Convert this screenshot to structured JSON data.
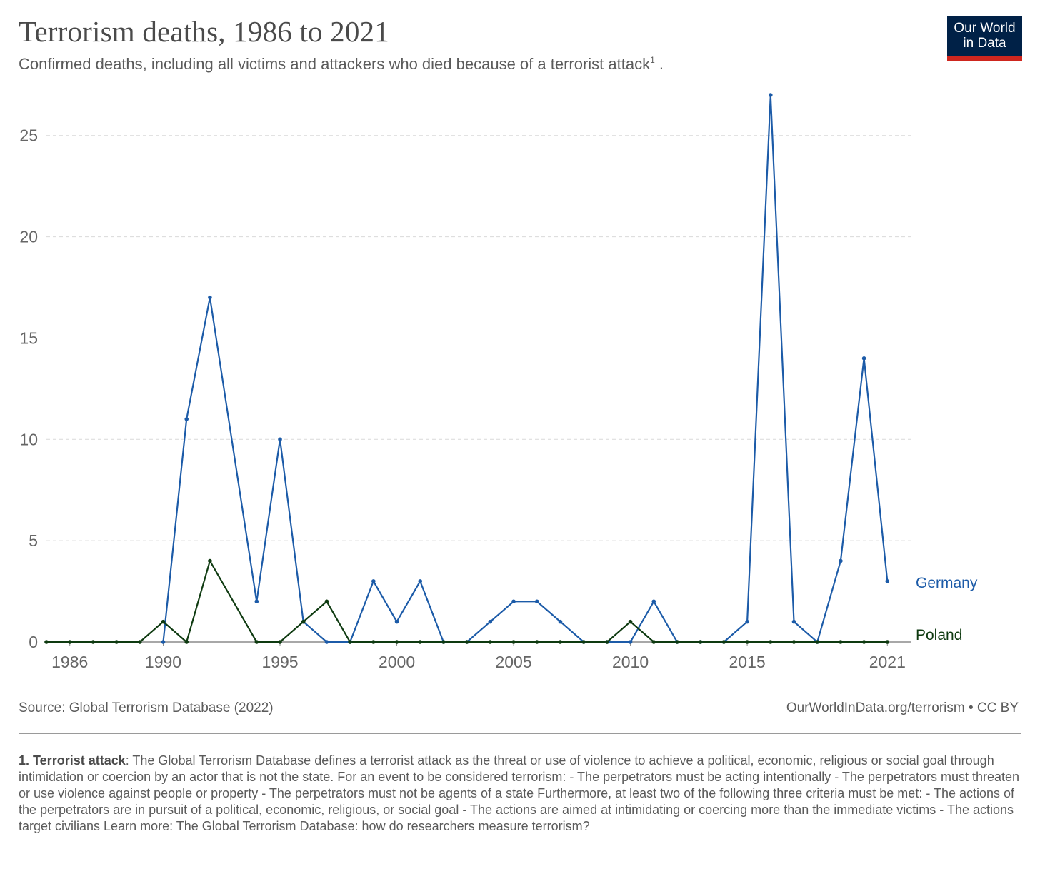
{
  "title": "Terrorism deaths, 1986 to 2021",
  "subtitle": "Confirmed deaths, including all victims and attackers who died because of a terrorist attack",
  "subtitle_sup": "1",
  "subtitle_end": " .",
  "logo": {
    "line1": "Our World",
    "line2": "in Data",
    "bg": "#002147",
    "accent": "#ce261e"
  },
  "source": "Source: Global Terrorism Database (2022)",
  "credit": "OurWorldInData.org/terrorism • CC BY",
  "footnote": {
    "label": "1. Terrorist attack",
    "text": ": The Global Terrorism Database defines a terrorist attack as the threat or use of violence to achieve a political, economic, religious or social goal through intimidation or coercion by an actor that is not the state. For an event to be considered terrorism: - The perpetrators must be acting intentionally - The perpetrators must threaten or use violence against people or property - The perpetrators must not be agents of a state Furthermore, at least two of the following three criteria must be met: - The actions of the perpetrators are in pursuit of a political, economic, religious, or social goal - The actions are aimed at intimidating or coercing more than the immediate victims - The actions target civilians Learn more: The Global Terrorism Database: how do researchers measure terrorism?"
  },
  "chart_data": {
    "type": "line",
    "xlim": [
      1985,
      2022
    ],
    "ylim": [
      0,
      27
    ],
    "x_ticks": [
      1986,
      1990,
      1995,
      2000,
      2005,
      2010,
      2015,
      2021
    ],
    "y_ticks": [
      0,
      5,
      10,
      15,
      20,
      25
    ],
    "grid": true,
    "series": [
      {
        "name": "Germany",
        "color": "#1c5ba8",
        "points": [
          [
            1990,
            0
          ],
          [
            1991,
            11
          ],
          [
            1992,
            17
          ],
          [
            1994,
            2
          ],
          [
            1995,
            10
          ],
          [
            1996,
            1
          ],
          [
            1997,
            0
          ],
          [
            1998,
            0
          ],
          [
            1999,
            3
          ],
          [
            2000,
            1
          ],
          [
            2001,
            3
          ],
          [
            2002,
            0
          ],
          [
            2003,
            0
          ],
          [
            2004,
            1
          ],
          [
            2005,
            2
          ],
          [
            2006,
            2
          ],
          [
            2007,
            1
          ],
          [
            2008,
            0
          ],
          [
            2009,
            0
          ],
          [
            2010,
            0
          ],
          [
            2011,
            2
          ],
          [
            2012,
            0
          ],
          [
            2013,
            0
          ],
          [
            2014,
            0
          ],
          [
            2015,
            1
          ],
          [
            2016,
            27
          ],
          [
            2017,
            1
          ],
          [
            2018,
            0
          ],
          [
            2019,
            4
          ],
          [
            2020,
            14
          ],
          [
            2021,
            3
          ]
        ]
      },
      {
        "name": "Poland",
        "color": "#0e3a10",
        "points": [
          [
            1985,
            0
          ],
          [
            1986,
            0
          ],
          [
            1987,
            0
          ],
          [
            1988,
            0
          ],
          [
            1989,
            0
          ],
          [
            1990,
            1
          ],
          [
            1991,
            0
          ],
          [
            1992,
            4
          ],
          [
            1994,
            0
          ],
          [
            1995,
            0
          ],
          [
            1996,
            1
          ],
          [
            1997,
            2
          ],
          [
            1998,
            0
          ],
          [
            1999,
            0
          ],
          [
            2000,
            0
          ],
          [
            2001,
            0
          ],
          [
            2002,
            0
          ],
          [
            2003,
            0
          ],
          [
            2004,
            0
          ],
          [
            2005,
            0
          ],
          [
            2006,
            0
          ],
          [
            2007,
            0
          ],
          [
            2008,
            0
          ],
          [
            2009,
            0
          ],
          [
            2010,
            1
          ],
          [
            2011,
            0
          ],
          [
            2012,
            0
          ],
          [
            2013,
            0
          ],
          [
            2014,
            0
          ],
          [
            2015,
            0
          ],
          [
            2016,
            0
          ],
          [
            2017,
            0
          ],
          [
            2018,
            0
          ],
          [
            2019,
            0
          ],
          [
            2020,
            0
          ],
          [
            2021,
            0
          ]
        ]
      }
    ]
  }
}
